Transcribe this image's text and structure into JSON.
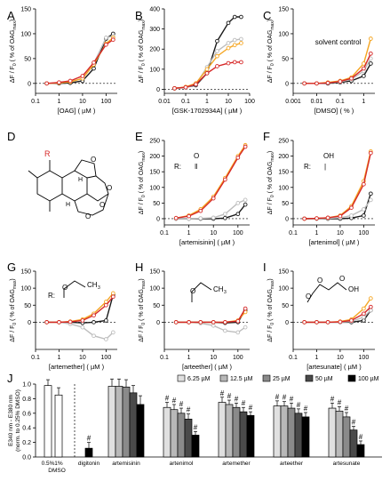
{
  "colors": {
    "black": "#1a1a1a",
    "light_gray": "#bdbdbd",
    "orange": "#f5a623",
    "red": "#d62828"
  },
  "ylabel_main": "ΔF / F",
  "ylabel_sub": "0",
  "ylabel_tail": " ( % of OAG",
  "ylabel_tail_sub": "max",
  "ylabel_end": ")",
  "chart_data": [
    {
      "panel": "A",
      "type": "line",
      "xscale": "log",
      "xlim": [
        0.1,
        300
      ],
      "ylim": [
        -20,
        150
      ],
      "xlabel": "[OAG]  ( µM )",
      "xticks": [
        "0.1",
        "1",
        "10",
        "100"
      ],
      "yticks": [
        "0",
        "50",
        "100",
        "150"
      ],
      "series": [
        {
          "color": "black",
          "x": [
            0.3,
            1,
            3,
            10,
            30,
            100,
            200
          ],
          "y": [
            0,
            0,
            1,
            5,
            30,
            90,
            100
          ]
        },
        {
          "color": "light_gray",
          "x": [
            0.3,
            1,
            3,
            10,
            30,
            100,
            200
          ],
          "y": [
            0,
            1,
            3,
            10,
            40,
            92,
            95
          ]
        },
        {
          "color": "orange",
          "x": [
            0.3,
            1,
            3,
            10,
            30,
            100,
            200
          ],
          "y": [
            0,
            1,
            3,
            10,
            38,
            80,
            92
          ]
        },
        {
          "color": "red",
          "x": [
            0.3,
            1,
            3,
            10,
            30,
            100,
            200
          ],
          "y": [
            0,
            2,
            5,
            15,
            42,
            78,
            88
          ]
        }
      ]
    },
    {
      "panel": "B",
      "type": "line",
      "xscale": "log",
      "xlim": [
        0.01,
        100
      ],
      "ylim": [
        -20,
        400
      ],
      "xlabel": "[GSK-1702934A]  ( µM )",
      "xticks": [
        "0.01",
        "0.1",
        "1",
        "10",
        "100"
      ],
      "yticks": [
        "0",
        "100",
        "200",
        "300",
        "400"
      ],
      "series": [
        {
          "color": "black",
          "x": [
            0.03,
            0.1,
            0.3,
            1,
            3,
            10,
            20,
            40
          ],
          "y": [
            5,
            10,
            20,
            80,
            240,
            330,
            360,
            360
          ]
        },
        {
          "color": "light_gray",
          "x": [
            0.03,
            0.1,
            0.3,
            1,
            3,
            10,
            20,
            40
          ],
          "y": [
            3,
            8,
            25,
            110,
            190,
            230,
            245,
            250
          ]
        },
        {
          "color": "orange",
          "x": [
            0.03,
            0.1,
            0.3,
            1,
            3,
            10,
            20,
            40
          ],
          "y": [
            5,
            12,
            30,
            100,
            165,
            205,
            220,
            230
          ]
        },
        {
          "color": "red",
          "x": [
            0.03,
            0.1,
            0.3,
            1,
            3,
            10,
            20,
            40
          ],
          "y": [
            5,
            10,
            25,
            80,
            115,
            130,
            135,
            135
          ]
        }
      ]
    },
    {
      "panel": "C",
      "type": "line",
      "xscale": "log",
      "xlim": [
        0.001,
        3
      ],
      "ylim": [
        -20,
        150
      ],
      "xlabel": "[DMSO]  ( % )",
      "annotation": "solvent control",
      "xticks": [
        "0.001",
        "0.01",
        "0.1",
        "1"
      ],
      "yticks": [
        "0",
        "50",
        "100",
        "150"
      ],
      "series": [
        {
          "color": "black",
          "x": [
            0.003,
            0.01,
            0.03,
            0.1,
            0.3,
            1,
            2
          ],
          "y": [
            0,
            0,
            0,
            2,
            5,
            15,
            40
          ]
        },
        {
          "color": "light_gray",
          "x": [
            0.003,
            0.01,
            0.03,
            0.1,
            0.3,
            1,
            2
          ],
          "y": [
            0,
            0,
            1,
            3,
            8,
            25,
            50
          ]
        },
        {
          "color": "orange",
          "x": [
            0.003,
            0.01,
            0.03,
            0.1,
            0.3,
            1,
            2
          ],
          "y": [
            0,
            0,
            2,
            5,
            12,
            40,
            90
          ]
        },
        {
          "color": "red",
          "x": [
            0.003,
            0.01,
            0.03,
            0.1,
            0.3,
            1,
            2
          ],
          "y": [
            0,
            0,
            1,
            4,
            10,
            30,
            60
          ]
        }
      ]
    },
    {
      "panel": "E",
      "type": "line",
      "xscale": "log",
      "xlim": [
        0.1,
        300
      ],
      "ylim": [
        -20,
        250
      ],
      "xlabel": "[artemisinin]  ( µM )",
      "xticks": [
        "0.1",
        "1",
        "10",
        "100"
      ],
      "yticks": [
        "0",
        "50",
        "100",
        "150",
        "200",
        "250"
      ],
      "series": [
        {
          "color": "black",
          "x": [
            0.3,
            1,
            3,
            10,
            30,
            100,
            200
          ],
          "y": [
            0,
            0,
            0,
            0,
            2,
            15,
            45
          ]
        },
        {
          "color": "light_gray",
          "x": [
            0.3,
            1,
            3,
            10,
            30,
            100,
            200
          ],
          "y": [
            0,
            0,
            1,
            3,
            15,
            50,
            60
          ]
        },
        {
          "color": "orange",
          "x": [
            0.3,
            1,
            3,
            10,
            30,
            100,
            200
          ],
          "y": [
            2,
            10,
            30,
            70,
            130,
            200,
            235
          ]
        },
        {
          "color": "red",
          "x": [
            0.3,
            1,
            3,
            10,
            30,
            100,
            200
          ],
          "y": [
            2,
            8,
            25,
            65,
            125,
            195,
            230
          ]
        }
      ]
    },
    {
      "panel": "F",
      "type": "line",
      "xscale": "log",
      "xlim": [
        0.1,
        300
      ],
      "ylim": [
        -20,
        250
      ],
      "xlabel": "[artenimol]  ( µM )",
      "xticks": [
        "0.1",
        "1",
        "10",
        "100"
      ],
      "yticks": [
        "0",
        "50",
        "100",
        "150",
        "200",
        "250"
      ],
      "series": [
        {
          "color": "black",
          "x": [
            0.3,
            1,
            3,
            10,
            30,
            100,
            200
          ],
          "y": [
            0,
            0,
            0,
            0,
            2,
            10,
            80
          ]
        },
        {
          "color": "light_gray",
          "x": [
            0.3,
            1,
            3,
            10,
            30,
            100,
            200
          ],
          "y": [
            0,
            0,
            1,
            3,
            10,
            30,
            60
          ]
        },
        {
          "color": "orange",
          "x": [
            0.3,
            1,
            3,
            10,
            30,
            100,
            200
          ],
          "y": [
            0,
            1,
            3,
            10,
            40,
            120,
            215
          ]
        },
        {
          "color": "red",
          "x": [
            0.3,
            1,
            3,
            10,
            30,
            100,
            200
          ],
          "y": [
            0,
            1,
            3,
            8,
            35,
            110,
            210
          ]
        }
      ]
    },
    {
      "panel": "G",
      "type": "line",
      "xscale": "log",
      "xlim": [
        0.1,
        300
      ],
      "ylim": [
        -80,
        150
      ],
      "xlabel": "[artemether]  ( µM )",
      "xticks": [
        "0.1",
        "1",
        "10",
        "100"
      ],
      "yticks": [
        "0",
        "50",
        "100",
        "150"
      ],
      "series": [
        {
          "color": "black",
          "x": [
            0.3,
            1,
            3,
            10,
            30,
            100,
            200
          ],
          "y": [
            0,
            0,
            0,
            -2,
            0,
            5,
            80
          ]
        },
        {
          "color": "light_gray",
          "x": [
            0.3,
            1,
            3,
            10,
            30,
            100,
            200
          ],
          "y": [
            0,
            0,
            -5,
            -15,
            -40,
            -50,
            -30
          ]
        },
        {
          "color": "orange",
          "x": [
            0.3,
            1,
            3,
            10,
            30,
            100,
            200
          ],
          "y": [
            0,
            0,
            2,
            8,
            25,
            60,
            85
          ]
        },
        {
          "color": "red",
          "x": [
            0.3,
            1,
            3,
            10,
            30,
            100,
            200
          ],
          "y": [
            0,
            0,
            1,
            5,
            20,
            50,
            75
          ]
        }
      ]
    },
    {
      "panel": "H",
      "type": "line",
      "xscale": "log",
      "xlim": [
        0.1,
        300
      ],
      "ylim": [
        -80,
        150
      ],
      "xlabel": "[arteether]  ( µM )",
      "xticks": [
        "0.1",
        "1",
        "10",
        "100"
      ],
      "yticks": [
        "0",
        "50",
        "100",
        "150"
      ],
      "series": [
        {
          "color": "black",
          "x": [
            0.3,
            1,
            3,
            10,
            30,
            100,
            200
          ],
          "y": [
            0,
            0,
            0,
            0,
            -2,
            0,
            35
          ]
        },
        {
          "color": "light_gray",
          "x": [
            0.3,
            1,
            3,
            10,
            30,
            100,
            200
          ],
          "y": [
            0,
            0,
            -3,
            -10,
            -25,
            -30,
            -15
          ]
        },
        {
          "color": "orange",
          "x": [
            0.3,
            1,
            3,
            10,
            30,
            100,
            200
          ],
          "y": [
            0,
            0,
            0,
            0,
            0,
            5,
            30
          ]
        },
        {
          "color": "red",
          "x": [
            0.3,
            1,
            3,
            10,
            30,
            100,
            200
          ],
          "y": [
            0,
            0,
            0,
            0,
            0,
            3,
            40
          ]
        }
      ]
    },
    {
      "panel": "I",
      "type": "line",
      "xscale": "log",
      "xlim": [
        0.1,
        300
      ],
      "ylim": [
        -80,
        150
      ],
      "xlabel": "[artesunate]  ( µM )",
      "xticks": [
        "0.1",
        "1",
        "10",
        "100"
      ],
      "yticks": [
        "0",
        "50",
        "100",
        "150"
      ],
      "series": [
        {
          "color": "black",
          "x": [
            0.3,
            1,
            3,
            10,
            30,
            100,
            200
          ],
          "y": [
            0,
            0,
            0,
            0,
            0,
            5,
            35
          ]
        },
        {
          "color": "light_gray",
          "x": [
            0.3,
            1,
            3,
            10,
            30,
            100,
            200
          ],
          "y": [
            0,
            0,
            0,
            0,
            2,
            15,
            35
          ]
        },
        {
          "color": "orange",
          "x": [
            0.3,
            1,
            3,
            10,
            30,
            100,
            200
          ],
          "y": [
            0,
            0,
            0,
            2,
            8,
            40,
            70
          ]
        },
        {
          "color": "red",
          "x": [
            0.3,
            1,
            3,
            10,
            30,
            100,
            200
          ],
          "y": [
            0,
            0,
            0,
            1,
            5,
            25,
            45
          ]
        }
      ]
    },
    {
      "panel": "J",
      "type": "bar",
      "ylim": [
        0,
        1.0
      ],
      "ylabel": "E340 nm - E380 nm",
      "ylabel2": "(norm. to 0.25% DMSO)",
      "yticks": [
        "0.0",
        "0.2",
        "0.4",
        "0.6",
        "0.8",
        "1.0"
      ],
      "legend": [
        "6.25 µM",
        "12.5 µM",
        "25 µM",
        "50 µM",
        "100 µM"
      ],
      "legend_colors": [
        "#e0e0e0",
        "#b8b8b8",
        "#8a8a8a",
        "#4a4a4a",
        "#000000"
      ],
      "controls": {
        "labels": [
          "0.5%",
          "1%"
        ],
        "sublabel": "DMSO",
        "values": [
          0.98,
          0.85
        ],
        "errors": [
          0.08,
          0.1
        ]
      },
      "digitonin": {
        "label": "digitonin",
        "value": 0.12,
        "error": 0.08,
        "mark": "#"
      },
      "groups": [
        {
          "label": "artemisinin",
          "values": [
            0.97,
            0.97,
            0.96,
            0.88,
            0.72
          ],
          "errors": [
            0.1,
            0.1,
            0.1,
            0.1,
            0.12
          ],
          "marks": [
            "",
            "",
            "",
            "",
            ""
          ]
        },
        {
          "label": "artenimol",
          "values": [
            0.68,
            0.65,
            0.6,
            0.52,
            0.3
          ],
          "errors": [
            0.07,
            0.07,
            0.07,
            0.07,
            0.05
          ],
          "marks": [
            "#",
            "#",
            "#",
            "#",
            "#"
          ]
        },
        {
          "label": "artemether",
          "values": [
            0.75,
            0.72,
            0.68,
            0.62,
            0.57
          ],
          "errors": [
            0.07,
            0.06,
            0.06,
            0.06,
            0.05
          ],
          "marks": [
            "#",
            "#",
            "#",
            "#",
            "#"
          ]
        },
        {
          "label": "arteether",
          "values": [
            0.7,
            0.7,
            0.67,
            0.6,
            0.55
          ],
          "errors": [
            0.07,
            0.06,
            0.07,
            0.06,
            0.06
          ],
          "marks": [
            "#",
            "#",
            "#",
            "#",
            "#"
          ]
        },
        {
          "label": "artesunate",
          "values": [
            0.67,
            0.63,
            0.55,
            0.37,
            0.17
          ],
          "errors": [
            0.07,
            0.06,
            0.06,
            0.05,
            0.05
          ],
          "marks": [
            "#",
            "#",
            "#",
            "#",
            "#"
          ]
        }
      ]
    }
  ],
  "structures": {
    "D": {
      "R": "R",
      "H1": "H",
      "H2": "H",
      "O1": "O",
      "O2": "O",
      "O3": "O",
      "O4": "O"
    },
    "E": {
      "R": "R:",
      "O": "O"
    },
    "F": {
      "R": "R:",
      "O": "OH"
    },
    "G": {
      "R": "R:",
      "O": "O",
      "C": "CH",
      "sub": "3"
    },
    "H": {
      "R": "R:",
      "O": "O",
      "C": "CH",
      "sub": "3"
    },
    "I": {
      "R": "R:",
      "O1": "O",
      "O2": "O",
      "O3": "O",
      "O4": "OH"
    }
  },
  "panel_letters": [
    "A",
    "B",
    "C",
    "D",
    "E",
    "F",
    "G",
    "H",
    "I",
    "J"
  ]
}
